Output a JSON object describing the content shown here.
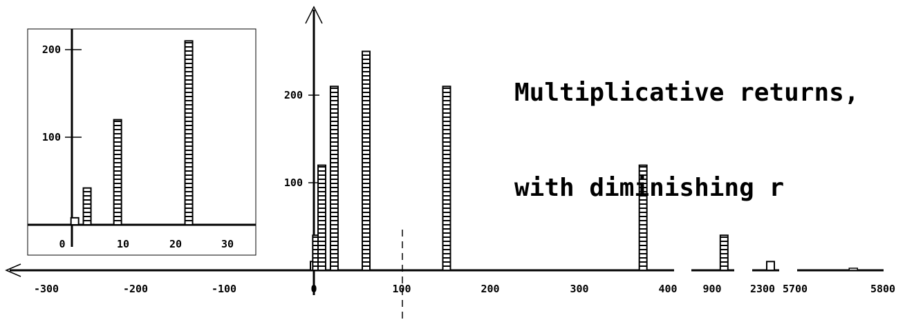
{
  "title_lines": [
    "Multiplicative returns,",
    "with diminishing r"
  ],
  "chart_data": {
    "type": "bar",
    "title": "Multiplicative returns, with diminishing r",
    "xlabel": "",
    "ylabel": "",
    "main": {
      "x_segments": [
        {
          "range": [
            -320,
            400
          ],
          "tick_labels": [
            "-300",
            "-200",
            "-100",
            "0",
            "100",
            "200",
            "300",
            "400"
          ]
        },
        {
          "range": [
            870,
            1060
          ],
          "tick_labels": [
            "900"
          ]
        },
        {
          "range": [
            2270,
            2330
          ],
          "tick_labels": [
            "2300"
          ]
        },
        {
          "range": [
            5700,
            5800
          ],
          "tick_labels": [
            "5700",
            "5800"
          ]
        }
      ],
      "ylim": [
        0,
        300
      ],
      "y_tick_labels": [
        "100",
        "200"
      ],
      "reference_line_x": 100,
      "bars": [
        {
          "x": 0,
          "value": 10
        },
        {
          "x": 3,
          "value": 40
        },
        {
          "x": 9,
          "value": 120
        },
        {
          "x": 23,
          "value": 210
        },
        {
          "x": 59,
          "value": 250
        },
        {
          "x": 150,
          "value": 210
        },
        {
          "x": 372,
          "value": 120
        },
        {
          "x": 1015,
          "value": 40
        },
        {
          "x": 2310,
          "value": 10
        },
        {
          "x": 5765,
          "value": 1
        }
      ]
    },
    "inset": {
      "xlim": [
        -1,
        35
      ],
      "ylim": [
        0,
        230
      ],
      "x_tick_labels": [
        "0",
        "10",
        "20",
        "30"
      ],
      "y_tick_labels": [
        "100",
        "200"
      ],
      "bars": [
        {
          "x": 0.5,
          "value": 8
        },
        {
          "x": 3,
          "value": 42
        },
        {
          "x": 9,
          "value": 120
        },
        {
          "x": 23,
          "value": 210
        }
      ]
    }
  }
}
